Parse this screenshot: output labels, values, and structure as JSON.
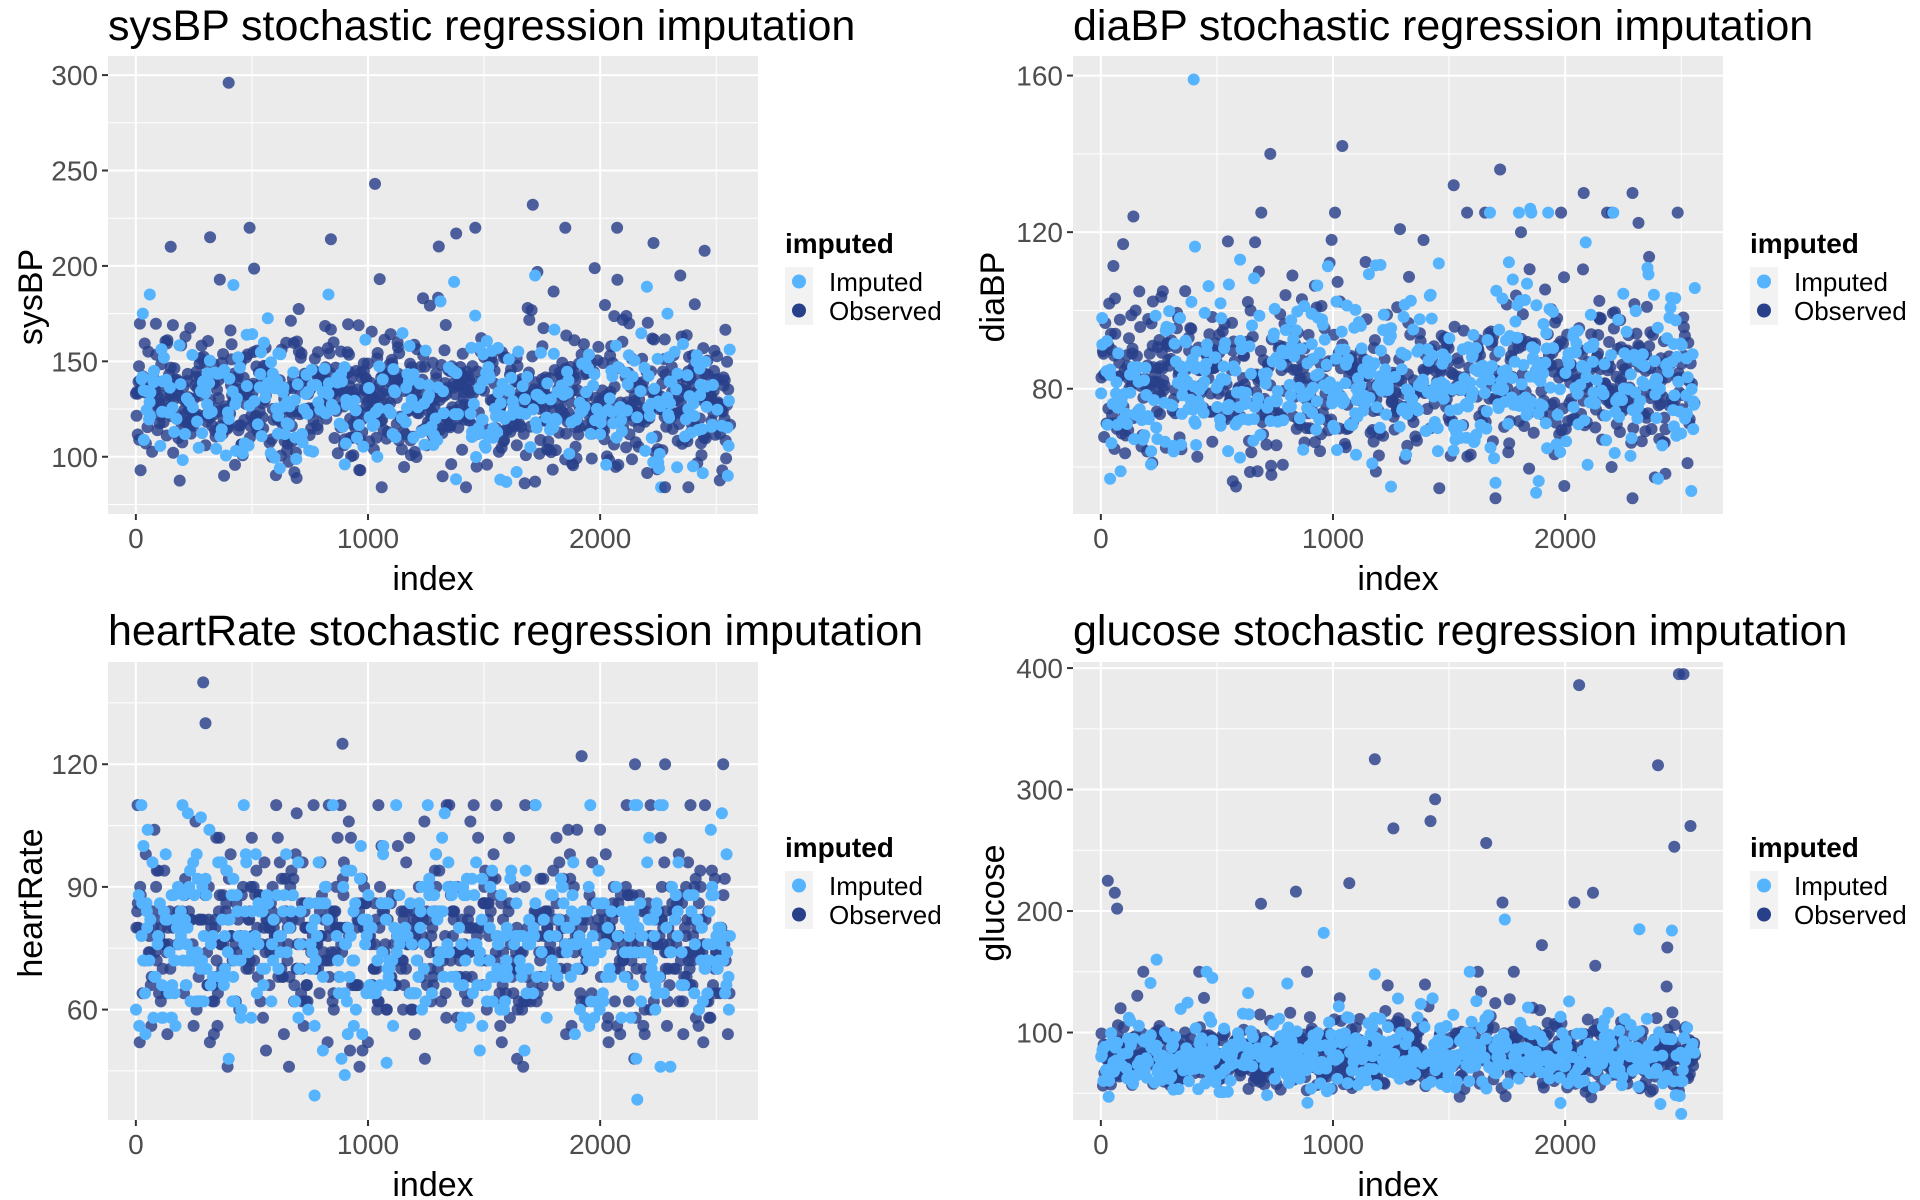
{
  "colors": {
    "Imputed": "#56B4FF",
    "Observed": "#283F8A",
    "panel_background": "#EBEBEB",
    "grid": "#FFFFFF",
    "legend_key_background": "#F2F2F2"
  },
  "legend": {
    "title": "imputed",
    "entries": [
      "Imputed",
      "Observed"
    ],
    "position": "right"
  },
  "chart_data": [
    {
      "type": "scatter",
      "title": "sysBP stochastic regression imputation",
      "xlabel": "index",
      "ylabel": "sysBP",
      "xlim": [
        -120,
        2680
      ],
      "ylim": [
        70,
        310
      ],
      "xticks": [
        0,
        1000,
        2000
      ],
      "xtick_labels": [
        "0",
        "1000",
        "2000"
      ],
      "yticks": [
        100,
        150,
        200,
        250,
        300
      ],
      "ytick_labels": [
        "100",
        "150",
        "200",
        "250",
        "300"
      ],
      "grid": true,
      "n_points": 2560,
      "distribution": {
        "center": 128,
        "spread": 16,
        "min": 84,
        "max": 220,
        "imputed_share": 0.3
      },
      "series": [
        {
          "name": "Imputed",
          "points": [
            [
              30,
              175
            ],
            [
              60,
              185
            ],
            [
              420,
              190
            ],
            [
              830,
              185
            ],
            [
              1720,
              195
            ],
            [
              2290,
              175
            ],
            [
              1570,
              88
            ],
            [
              1640,
              92
            ],
            [
              2250,
              97
            ],
            [
              2550,
              90
            ],
            [
              620,
              94
            ],
            [
              900,
              96
            ],
            [
              1040,
              100
            ],
            [
              2400,
              95
            ]
          ]
        },
        {
          "name": "Observed",
          "points": [
            [
              400,
              296
            ],
            [
              1030,
              243
            ],
            [
              1710,
              232
            ],
            [
              490,
              220
            ],
            [
              1850,
              220
            ],
            [
              840,
              214
            ],
            [
              320,
              215
            ],
            [
              1380,
              217
            ],
            [
              2230,
              212
            ],
            [
              2450,
              208
            ],
            [
              150,
              210
            ],
            [
              2280,
              84
            ],
            [
              1720,
              87
            ],
            [
              2380,
              84
            ],
            [
              380,
              90
            ]
          ]
        }
      ]
    },
    {
      "type": "scatter",
      "title": "diaBP stochastic regression imputation",
      "xlabel": "index",
      "ylabel": "diaBP",
      "xlim": [
        -120,
        2680
      ],
      "ylim": [
        48,
        165
      ],
      "xticks": [
        0,
        1000,
        2000
      ],
      "xtick_labels": [
        "0",
        "1000",
        "2000"
      ],
      "yticks": [
        80,
        120,
        160
      ],
      "ytick_labels": [
        "80",
        "120",
        "160"
      ],
      "grid": true,
      "n_points": 2560,
      "distribution": {
        "center": 82,
        "spread": 10,
        "min": 52,
        "max": 125,
        "imputed_share": 0.45
      },
      "series": [
        {
          "name": "Imputed",
          "points": [
            [
              400,
              159
            ],
            [
              1850,
              126
            ],
            [
              1250,
              55
            ],
            [
              1700,
              56
            ],
            [
              40,
              57
            ],
            [
              2400,
              57
            ],
            [
              600,
              113
            ]
          ]
        },
        {
          "name": "Observed",
          "points": [
            [
              1040,
              142
            ],
            [
              730,
              140
            ],
            [
              1720,
              136
            ],
            [
              1520,
              132
            ],
            [
              2080,
              130
            ],
            [
              2290,
              130
            ],
            [
              140,
              124
            ],
            [
              1810,
              120
            ],
            [
              1390,
              118
            ],
            [
              1700,
              52
            ],
            [
              2200,
              60
            ]
          ]
        }
      ]
    },
    {
      "type": "scatter",
      "title": "heartRate stochastic regression imputation",
      "xlabel": "index",
      "ylabel": "heartRate",
      "xlim": [
        -120,
        2680
      ],
      "ylim": [
        33,
        145
      ],
      "xticks": [
        0,
        1000,
        2000
      ],
      "xtick_labels": [
        "0",
        "1000",
        "2000"
      ],
      "yticks": [
        60,
        90,
        120
      ],
      "ytick_labels": [
        "60",
        "90",
        "120"
      ],
      "grid": true,
      "n_points": 2560,
      "distribution": {
        "center": 76,
        "spread": 11,
        "min": 45,
        "max": 110,
        "imputed_share": 0.4
      },
      "series": [
        {
          "name": "Imputed",
          "points": [
            [
              2160,
              38
            ],
            [
              770,
              39
            ],
            [
              900,
              44
            ],
            [
              1080,
              47
            ],
            [
              400,
              48
            ],
            [
              280,
              107
            ],
            [
              2260,
              46
            ]
          ]
        },
        {
          "name": "Observed",
          "points": [
            [
              290,
              140
            ],
            [
              300,
              130
            ],
            [
              890,
              125
            ],
            [
              1920,
              122
            ],
            [
              2150,
              120
            ],
            [
              2280,
              120
            ],
            [
              2530,
              120
            ]
          ]
        }
      ]
    },
    {
      "type": "scatter",
      "title": "glucose stochastic regression imputation",
      "xlabel": "index",
      "ylabel": "glucose",
      "xlim": [
        -120,
        2680
      ],
      "ylim": [
        28,
        405
      ],
      "xticks": [
        0,
        1000,
        2000
      ],
      "xtick_labels": [
        "0",
        "1000",
        "2000"
      ],
      "yticks": [
        100,
        200,
        300,
        400
      ],
      "ytick_labels": [
        "100",
        "200",
        "300",
        "400"
      ],
      "grid": true,
      "n_points": 2560,
      "distribution": {
        "center": 80,
        "spread": 13,
        "min": 40,
        "max": 150,
        "imputed_share": 0.45
      },
      "series": [
        {
          "name": "Imputed",
          "points": [
            [
              240,
              160
            ],
            [
              960,
              182
            ],
            [
              1740,
              193
            ],
            [
              2320,
              185
            ],
            [
              2460,
              184
            ],
            [
              1180,
              148
            ],
            [
              480,
              145
            ],
            [
              1280,
              128
            ],
            [
              1980,
              42
            ],
            [
              2500,
              33
            ]
          ]
        },
        {
          "name": "Observed",
          "points": [
            [
              2490,
              395
            ],
            [
              2510,
              395
            ],
            [
              2060,
              386
            ],
            [
              1180,
              325
            ],
            [
              2400,
              320
            ],
            [
              1440,
              292
            ],
            [
              1420,
              274
            ],
            [
              2540,
              270
            ],
            [
              1260,
              268
            ],
            [
              1660,
              256
            ],
            [
              2470,
              253
            ],
            [
              1070,
              223
            ],
            [
              30,
              225
            ],
            [
              60,
              215
            ],
            [
              2120,
              215
            ],
            [
              840,
              216
            ],
            [
              1730,
              207
            ],
            [
              2040,
              207
            ],
            [
              70,
              202
            ],
            [
              690,
              206
            ],
            [
              1900,
              172
            ],
            [
              2440,
              170
            ],
            [
              2130,
              155
            ]
          ]
        }
      ]
    }
  ]
}
